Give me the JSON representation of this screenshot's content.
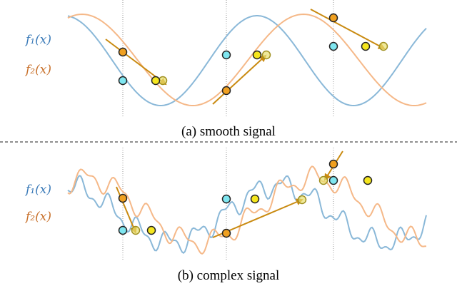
{
  "panels": [
    {
      "labels": [
        "f₁(x)",
        "f₂(x)"
      ],
      "caption": "(a) smooth signal"
    },
    {
      "labels": [
        "f₁(x)",
        "f₂(x)"
      ],
      "caption": "(b) complex signal"
    }
  ]
}
